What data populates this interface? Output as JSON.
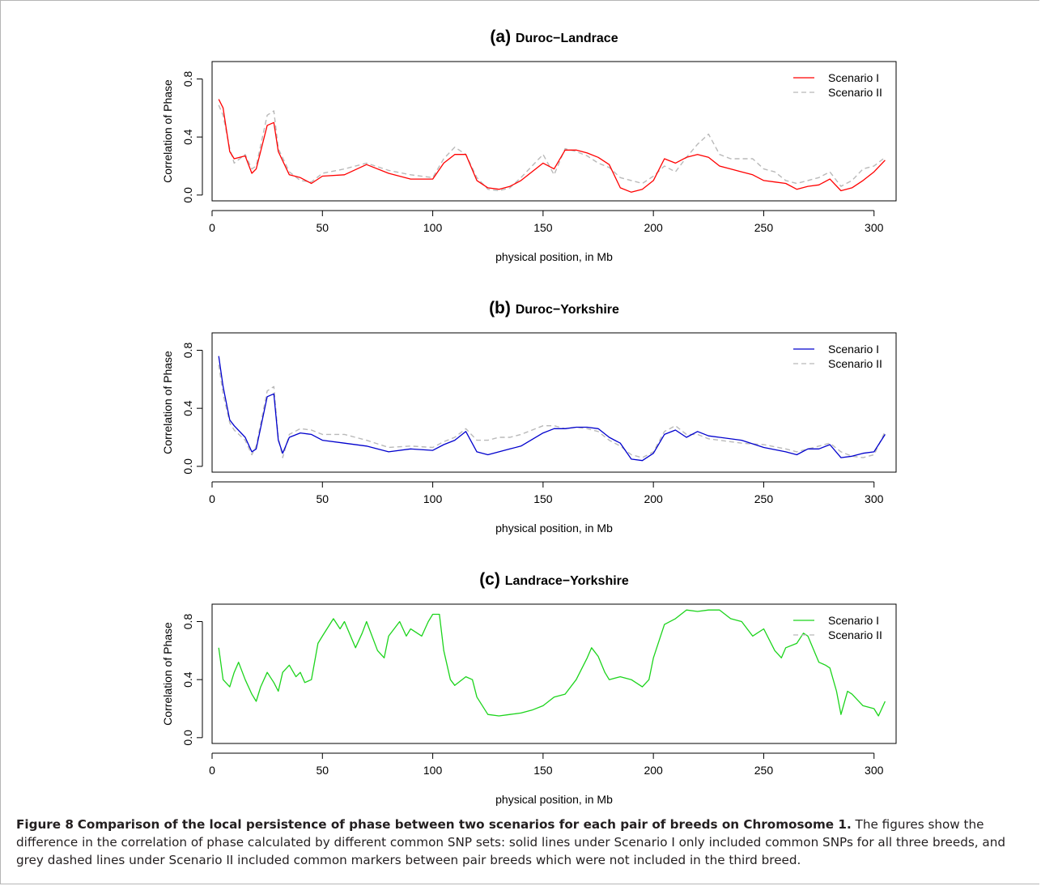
{
  "figure": {
    "caption_label": "Figure 8",
    "caption_title": "Comparison of the local persistence of phase between two scenarios for each pair of breeds on Chromosome 1.",
    "caption_body": "The figures show the difference in the correlation of phase calculated by different common SNP sets: solid lines under Scenario I only included common SNPs for all three breeds, and grey dashed lines under Scenario II included common markers between pair breeds which were not included in the third breed."
  },
  "chart_data": [
    {
      "type": "line",
      "title_letter": "(a)",
      "title": "Duroc−Landrace",
      "xlabel": "physical position, in Mb",
      "ylabel": "Correlation of Phase",
      "xlim": [
        0,
        310
      ],
      "ylim": [
        -0.04,
        0.92
      ],
      "xticks": [
        0,
        50,
        100,
        150,
        200,
        250,
        300
      ],
      "yticks": [
        0.0,
        0.4,
        0.8
      ],
      "grid": false,
      "legend_position": "top-right",
      "series": [
        {
          "name": "Scenario I",
          "color": "#ff0000",
          "style": "solid",
          "x": [
            3,
            5,
            8,
            10,
            15,
            18,
            20,
            25,
            28,
            30,
            35,
            40,
            45,
            50,
            60,
            70,
            80,
            90,
            100,
            105,
            110,
            115,
            120,
            125,
            130,
            135,
            140,
            150,
            155,
            160,
            165,
            170,
            175,
            180,
            185,
            190,
            195,
            200,
            205,
            210,
            215,
            220,
            225,
            230,
            235,
            240,
            245,
            250,
            255,
            260,
            265,
            270,
            275,
            280,
            285,
            290,
            295,
            300,
            305
          ],
          "y": [
            0.66,
            0.6,
            0.3,
            0.25,
            0.27,
            0.15,
            0.18,
            0.48,
            0.5,
            0.3,
            0.14,
            0.12,
            0.08,
            0.13,
            0.14,
            0.21,
            0.15,
            0.11,
            0.11,
            0.22,
            0.28,
            0.28,
            0.1,
            0.05,
            0.04,
            0.06,
            0.1,
            0.22,
            0.18,
            0.31,
            0.31,
            0.29,
            0.26,
            0.21,
            0.05,
            0.02,
            0.04,
            0.1,
            0.25,
            0.22,
            0.26,
            0.28,
            0.26,
            0.2,
            0.18,
            0.16,
            0.14,
            0.1,
            0.09,
            0.08,
            0.04,
            0.06,
            0.07,
            0.11,
            0.03,
            0.05,
            0.1,
            0.16,
            0.24
          ]
        },
        {
          "name": "Scenario II",
          "color": "#b9b9b9",
          "style": "dashed",
          "x": [
            3,
            5,
            8,
            10,
            15,
            18,
            20,
            25,
            28,
            30,
            35,
            40,
            45,
            50,
            60,
            70,
            80,
            90,
            100,
            105,
            110,
            115,
            120,
            125,
            130,
            135,
            140,
            150,
            155,
            160,
            165,
            170,
            175,
            180,
            185,
            190,
            195,
            200,
            205,
            210,
            215,
            220,
            225,
            230,
            235,
            240,
            245,
            250,
            255,
            260,
            265,
            270,
            275,
            280,
            285,
            290,
            295,
            300,
            305
          ],
          "y": [
            0.62,
            0.55,
            0.32,
            0.22,
            0.28,
            0.18,
            0.2,
            0.55,
            0.58,
            0.32,
            0.16,
            0.1,
            0.09,
            0.15,
            0.18,
            0.22,
            0.17,
            0.14,
            0.12,
            0.25,
            0.33,
            0.28,
            0.12,
            0.04,
            0.03,
            0.05,
            0.12,
            0.28,
            0.14,
            0.32,
            0.3,
            0.27,
            0.22,
            0.19,
            0.12,
            0.1,
            0.08,
            0.13,
            0.2,
            0.16,
            0.26,
            0.35,
            0.42,
            0.28,
            0.25,
            0.25,
            0.25,
            0.18,
            0.16,
            0.1,
            0.08,
            0.1,
            0.12,
            0.16,
            0.06,
            0.1,
            0.18,
            0.2,
            0.26
          ]
        }
      ]
    },
    {
      "type": "line",
      "title_letter": "(b)",
      "title": "Duroc−Yorkshire",
      "xlabel": "physical position, in Mb",
      "ylabel": "Correlation of Phase",
      "xlim": [
        0,
        310
      ],
      "ylim": [
        -0.04,
        0.92
      ],
      "xticks": [
        0,
        50,
        100,
        150,
        200,
        250,
        300
      ],
      "yticks": [
        0.0,
        0.4,
        0.8
      ],
      "grid": false,
      "legend_position": "top-right",
      "series": [
        {
          "name": "Scenario I",
          "color": "#0000cd",
          "style": "solid",
          "x": [
            3,
            5,
            8,
            10,
            15,
            18,
            20,
            25,
            28,
            30,
            32,
            35,
            40,
            45,
            50,
            60,
            70,
            80,
            90,
            100,
            105,
            110,
            115,
            120,
            125,
            130,
            135,
            140,
            150,
            155,
            160,
            165,
            170,
            175,
            180,
            185,
            190,
            195,
            200,
            205,
            210,
            215,
            220,
            225,
            230,
            240,
            250,
            260,
            265,
            270,
            275,
            280,
            285,
            290,
            295,
            300,
            305
          ],
          "y": [
            0.76,
            0.55,
            0.32,
            0.28,
            0.2,
            0.1,
            0.12,
            0.48,
            0.5,
            0.18,
            0.09,
            0.2,
            0.23,
            0.22,
            0.18,
            0.16,
            0.14,
            0.1,
            0.12,
            0.11,
            0.15,
            0.18,
            0.24,
            0.1,
            0.08,
            0.1,
            0.12,
            0.14,
            0.23,
            0.26,
            0.26,
            0.27,
            0.27,
            0.26,
            0.2,
            0.16,
            0.05,
            0.04,
            0.09,
            0.22,
            0.25,
            0.2,
            0.24,
            0.21,
            0.2,
            0.18,
            0.13,
            0.1,
            0.08,
            0.12,
            0.12,
            0.15,
            0.06,
            0.07,
            0.09,
            0.1,
            0.22
          ]
        },
        {
          "name": "Scenario II",
          "color": "#b9b9b9",
          "style": "dashed",
          "x": [
            3,
            5,
            8,
            10,
            15,
            18,
            20,
            25,
            28,
            30,
            32,
            35,
            40,
            45,
            50,
            60,
            70,
            80,
            90,
            100,
            105,
            110,
            115,
            120,
            125,
            130,
            135,
            140,
            150,
            155,
            160,
            165,
            170,
            175,
            180,
            185,
            190,
            195,
            200,
            205,
            210,
            215,
            220,
            225,
            230,
            240,
            250,
            260,
            265,
            270,
            275,
            280,
            285,
            290,
            295,
            300,
            305
          ],
          "y": [
            0.7,
            0.5,
            0.3,
            0.25,
            0.18,
            0.08,
            0.14,
            0.52,
            0.55,
            0.2,
            0.06,
            0.22,
            0.26,
            0.25,
            0.22,
            0.22,
            0.18,
            0.13,
            0.14,
            0.13,
            0.17,
            0.2,
            0.26,
            0.18,
            0.18,
            0.2,
            0.2,
            0.22,
            0.28,
            0.28,
            0.26,
            0.27,
            0.26,
            0.24,
            0.18,
            0.14,
            0.08,
            0.06,
            0.1,
            0.24,
            0.28,
            0.22,
            0.22,
            0.19,
            0.18,
            0.16,
            0.15,
            0.12,
            0.1,
            0.12,
            0.14,
            0.16,
            0.1,
            0.07,
            0.06,
            0.08,
            0.24
          ]
        }
      ]
    },
    {
      "type": "line",
      "title_letter": "(c)",
      "title": "Landrace−Yorkshire",
      "xlabel": "physical position, in Mb",
      "ylabel": "Correlation of Phase",
      "xlim": [
        0,
        310
      ],
      "ylim": [
        -0.04,
        0.92
      ],
      "xticks": [
        0,
        50,
        100,
        150,
        200,
        250,
        300
      ],
      "yticks": [
        0.0,
        0.4,
        0.8
      ],
      "grid": false,
      "legend_position": "top-right",
      "series": [
        {
          "name": "Scenario I",
          "color": "#1cd41c",
          "style": "solid",
          "x": [
            3,
            5,
            8,
            10,
            12,
            15,
            18,
            20,
            22,
            25,
            28,
            30,
            32,
            35,
            38,
            40,
            42,
            45,
            48,
            50,
            55,
            58,
            60,
            65,
            68,
            70,
            75,
            78,
            80,
            85,
            88,
            90,
            95,
            98,
            100,
            103,
            105,
            108,
            110,
            115,
            118,
            120,
            125,
            130,
            135,
            140,
            145,
            150,
            155,
            160,
            165,
            170,
            172,
            175,
            178,
            180,
            185,
            190,
            195,
            198,
            200,
            205,
            210,
            215,
            220,
            225,
            230,
            235,
            240,
            245,
            250,
            255,
            258,
            260,
            265,
            268,
            270,
            275,
            278,
            280,
            283,
            285,
            288,
            290,
            295,
            300,
            302,
            305
          ],
          "y": [
            0.62,
            0.4,
            0.35,
            0.45,
            0.52,
            0.4,
            0.3,
            0.25,
            0.35,
            0.45,
            0.38,
            0.32,
            0.45,
            0.5,
            0.42,
            0.45,
            0.38,
            0.4,
            0.65,
            0.7,
            0.82,
            0.75,
            0.8,
            0.62,
            0.72,
            0.8,
            0.6,
            0.55,
            0.7,
            0.8,
            0.7,
            0.75,
            0.7,
            0.8,
            0.85,
            0.85,
            0.6,
            0.4,
            0.36,
            0.42,
            0.4,
            0.28,
            0.16,
            0.15,
            0.16,
            0.17,
            0.19,
            0.22,
            0.28,
            0.3,
            0.4,
            0.55,
            0.62,
            0.56,
            0.45,
            0.4,
            0.42,
            0.4,
            0.35,
            0.4,
            0.55,
            0.78,
            0.82,
            0.88,
            0.87,
            0.88,
            0.88,
            0.82,
            0.8,
            0.7,
            0.75,
            0.6,
            0.55,
            0.62,
            0.65,
            0.72,
            0.7,
            0.52,
            0.5,
            0.48,
            0.32,
            0.16,
            0.32,
            0.3,
            0.22,
            0.2,
            0.15,
            0.25
          ]
        },
        {
          "name": "Scenario II",
          "color": "#b9b9b9",
          "style": "dashed",
          "x": [],
          "y": []
        }
      ]
    }
  ]
}
